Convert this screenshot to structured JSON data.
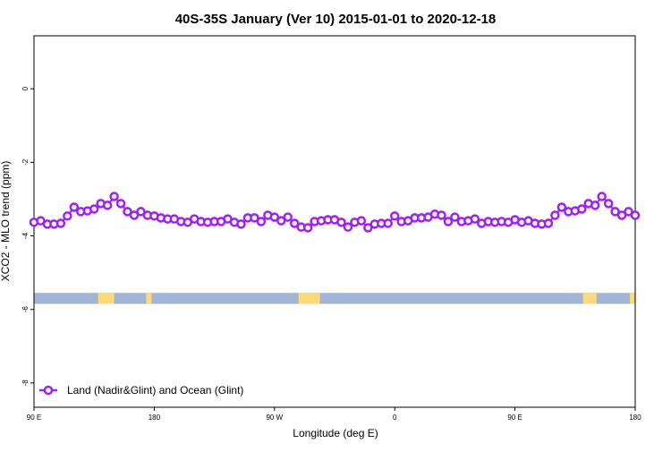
{
  "chart_data": {
    "type": "line",
    "title": "40S-35S January (Ver 10)   2015-01-01 to 2020-12-18",
    "x_label": "Longitude (deg E)",
    "y_label": "XCO2 - MLO trend (ppm)",
    "xlim": [
      90,
      540
    ],
    "xticks": [
      {
        "value": 90,
        "label": "90 E"
      },
      {
        "value": 180,
        "label": "180"
      },
      {
        "value": 270,
        "label": "90 W"
      },
      {
        "value": 360,
        "label": "0"
      },
      {
        "value": 450,
        "label": "90 E"
      },
      {
        "value": 540,
        "label": "180"
      }
    ],
    "ylim": [
      -8.66,
      1.44
    ],
    "yticks": [
      0,
      -2,
      -4,
      -6,
      -8
    ],
    "legend": "bottom-left",
    "x": [
      90,
      95,
      100,
      105,
      110,
      115,
      120,
      125,
      130,
      135,
      140,
      145,
      150,
      155,
      160,
      165,
      170,
      175,
      180,
      185,
      190,
      195,
      200,
      205,
      210,
      215,
      220,
      225,
      230,
      235,
      240,
      245,
      250,
      255,
      260,
      265,
      270,
      275,
      280,
      285,
      290,
      295,
      300,
      305,
      310,
      315,
      320,
      325,
      330,
      335,
      340,
      345,
      350,
      355,
      360,
      365,
      370,
      375,
      380,
      385,
      390,
      395,
      400,
      405,
      410,
      415,
      420,
      425,
      430,
      435,
      440,
      445,
      450,
      455,
      460,
      465,
      470,
      475,
      480,
      485,
      490,
      495,
      500,
      505,
      510,
      515,
      520,
      525,
      530,
      535,
      540
    ],
    "series": [
      {
        "name": "Land (Nadir&Glint) and Ocean (Glint)",
        "color": "#a020f0",
        "values": [
          -3.63,
          -3.59,
          -3.68,
          -3.68,
          -3.66,
          -3.46,
          -3.22,
          -3.34,
          -3.32,
          -3.27,
          -3.12,
          -3.17,
          -2.93,
          -3.12,
          -3.34,
          -3.44,
          -3.34,
          -3.44,
          -3.46,
          -3.51,
          -3.54,
          -3.54,
          -3.61,
          -3.63,
          -3.54,
          -3.61,
          -3.63,
          -3.61,
          -3.61,
          -3.54,
          -3.63,
          -3.68,
          -3.51,
          -3.51,
          -3.61,
          -3.44,
          -3.49,
          -3.59,
          -3.49,
          -3.66,
          -3.76,
          -3.78,
          -3.61,
          -3.59,
          -3.56,
          -3.56,
          -3.63,
          -3.76,
          -3.63,
          -3.59,
          -3.78,
          -3.68,
          -3.66,
          -3.66,
          -3.46,
          -3.61,
          -3.59,
          -3.51,
          -3.51,
          -3.49,
          -3.41,
          -3.44,
          -3.61,
          -3.49,
          -3.61,
          -3.59,
          -3.54,
          -3.66,
          -3.61,
          -3.63,
          -3.61,
          -3.63,
          -3.56,
          -3.63,
          -3.59,
          -3.66,
          -3.68,
          -3.66,
          -3.44,
          -3.22,
          -3.34,
          -3.32,
          -3.27,
          -3.12,
          -3.17,
          -2.93,
          -3.12,
          -3.34,
          -3.44,
          -3.34,
          -3.44
        ]
      }
    ],
    "surface_strip": {
      "ymin": -5.85,
      "ymax": -5.55,
      "ocean_color": "#a2b5d6",
      "land_color": "#fcd97a",
      "land": [
        [
          138,
          150
        ],
        [
          174,
          178
        ],
        [
          288,
          304
        ],
        [
          501,
          511
        ],
        [
          536,
          540
        ]
      ]
    }
  }
}
